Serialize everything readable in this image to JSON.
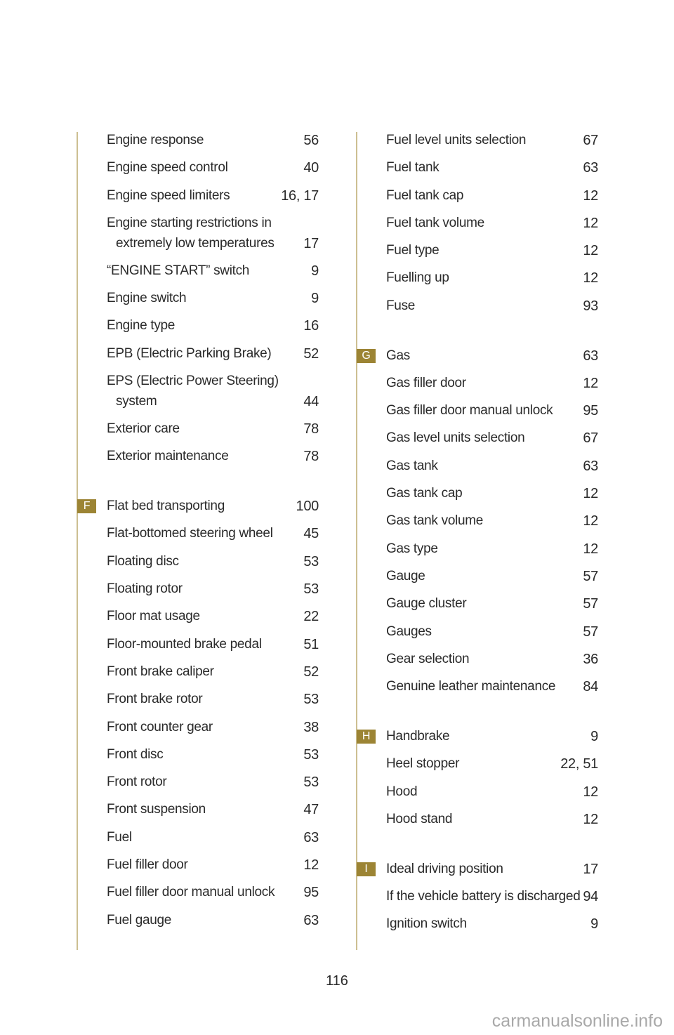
{
  "left_column": [
    {
      "label": "Engine response",
      "page": "56"
    },
    {
      "label": "Engine speed control",
      "page": "40"
    },
    {
      "label": "Engine speed limiters",
      "page": "16, 17"
    },
    {
      "label": "Engine starting restrictions in",
      "label2": "extremely low temperatures",
      "page": "17"
    },
    {
      "label": "“ENGINE START” switch",
      "page": "9"
    },
    {
      "label": "Engine switch",
      "page": "9"
    },
    {
      "label": "Engine type",
      "page": "16"
    },
    {
      "label": "EPB (Electric Parking Brake)",
      "page": "52"
    },
    {
      "label": "EPS (Electric Power Steering)",
      "label2": "system",
      "page": "44"
    },
    {
      "label": "Exterior care",
      "page": "78"
    },
    {
      "label": "Exterior maintenance",
      "page": "78"
    },
    {
      "section": "F",
      "label": "Flat bed transporting",
      "page": "100"
    },
    {
      "label": "Flat-bottomed steering wheel",
      "page": "45"
    },
    {
      "label": "Floating disc",
      "page": "53"
    },
    {
      "label": "Floating rotor",
      "page": "53"
    },
    {
      "label": "Floor mat usage",
      "page": "22"
    },
    {
      "label": "Floor-mounted brake pedal",
      "page": "51"
    },
    {
      "label": "Front brake caliper",
      "page": "52"
    },
    {
      "label": "Front brake rotor",
      "page": "53"
    },
    {
      "label": "Front counter gear",
      "page": "38"
    },
    {
      "label": "Front disc",
      "page": "53"
    },
    {
      "label": "Front rotor",
      "page": "53"
    },
    {
      "label": "Front suspension",
      "page": "47"
    },
    {
      "label": "Fuel",
      "page": "63"
    },
    {
      "label": "Fuel filler door",
      "page": "12"
    },
    {
      "label": "Fuel filler door manual unlock",
      "page": "95"
    },
    {
      "label": "Fuel gauge",
      "page": "63"
    }
  ],
  "right_column": [
    {
      "label": "Fuel level units selection",
      "page": "67"
    },
    {
      "label": "Fuel tank",
      "page": "63"
    },
    {
      "label": "Fuel tank cap",
      "page": "12"
    },
    {
      "label": "Fuel tank volume",
      "page": "12"
    },
    {
      "label": "Fuel type",
      "page": "12"
    },
    {
      "label": "Fuelling up",
      "page": "12"
    },
    {
      "label": "Fuse",
      "page": "93"
    },
    {
      "section": "G",
      "label": "Gas",
      "page": "63"
    },
    {
      "label": "Gas filler door",
      "page": "12"
    },
    {
      "label": "Gas filler door manual unlock",
      "page": "95"
    },
    {
      "label": "Gas level units selection",
      "page": "67"
    },
    {
      "label": "Gas tank",
      "page": "63"
    },
    {
      "label": "Gas tank cap",
      "page": "12"
    },
    {
      "label": "Gas tank volume",
      "page": "12"
    },
    {
      "label": "Gas type",
      "page": "12"
    },
    {
      "label": "Gauge",
      "page": "57"
    },
    {
      "label": "Gauge cluster",
      "page": "57"
    },
    {
      "label": "Gauges",
      "page": "57"
    },
    {
      "label": "Gear selection",
      "page": "36"
    },
    {
      "label": "Genuine leather maintenance",
      "page": "84"
    },
    {
      "section": "H",
      "label": "Handbrake",
      "page": "9"
    },
    {
      "label": "Heel stopper",
      "page": "22, 51"
    },
    {
      "label": "Hood",
      "page": "12"
    },
    {
      "label": "Hood stand",
      "page": "12"
    },
    {
      "section": "I",
      "label": "Ideal driving position",
      "page": "17"
    },
    {
      "label": "If the vehicle battery is discharged",
      "page": "94"
    },
    {
      "label": "Ignition switch",
      "page": "9"
    }
  ],
  "page_number": "116",
  "watermark": "carmanualsonline.info",
  "colors": {
    "badge": "#9c8434",
    "rule": "#cdbf92"
  }
}
